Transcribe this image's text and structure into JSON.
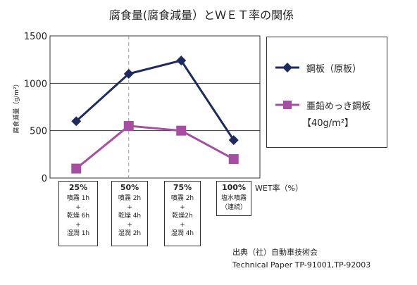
{
  "chart_data": {
    "type": "line",
    "title": "腐食量(腐食減量）とＷＥＴ率の関係",
    "ylabel": "腐食減量（g/m²）",
    "xlabel": "WET率（%）",
    "ylim": [
      0,
      1500
    ],
    "yticks": [
      0,
      500,
      1000,
      1500
    ],
    "grid": true,
    "legend_position": "right",
    "categories": [
      "25%",
      "50%",
      "75%",
      "100%"
    ],
    "series": [
      {
        "name": "鋼板（原板）",
        "values": [
          600,
          1100,
          1240,
          400
        ],
        "color": "#1f2a5e",
        "marker": "diamond"
      },
      {
        "name": "亜鉛めっき鋼板",
        "values": [
          100,
          550,
          500,
          200
        ],
        "color": "#a64ea1",
        "marker": "square"
      }
    ],
    "legend_note": "【40g/m²】",
    "annotations": [
      "50% dashed reference line"
    ]
  },
  "conditions": [
    {
      "pct": "25%",
      "steps": [
        "噴霧 1h",
        "+",
        "乾燥 6h",
        "+",
        "湿潤 1h"
      ]
    },
    {
      "pct": "50%",
      "steps": [
        "噴霧 2h",
        "+",
        "乾燥 4h",
        "+",
        "湿潤 2h"
      ]
    },
    {
      "pct": "75%",
      "steps": [
        "噴霧 2h",
        "+",
        "乾燥2h",
        "+",
        "湿潤 4h"
      ]
    },
    {
      "pct": "100%",
      "steps": [
        "塩水噴霧",
        "（連続）"
      ]
    }
  ],
  "source": {
    "line1": "出典（社）自動車技術会",
    "line2": "Technical Paper TP-91001,TP-92003"
  }
}
